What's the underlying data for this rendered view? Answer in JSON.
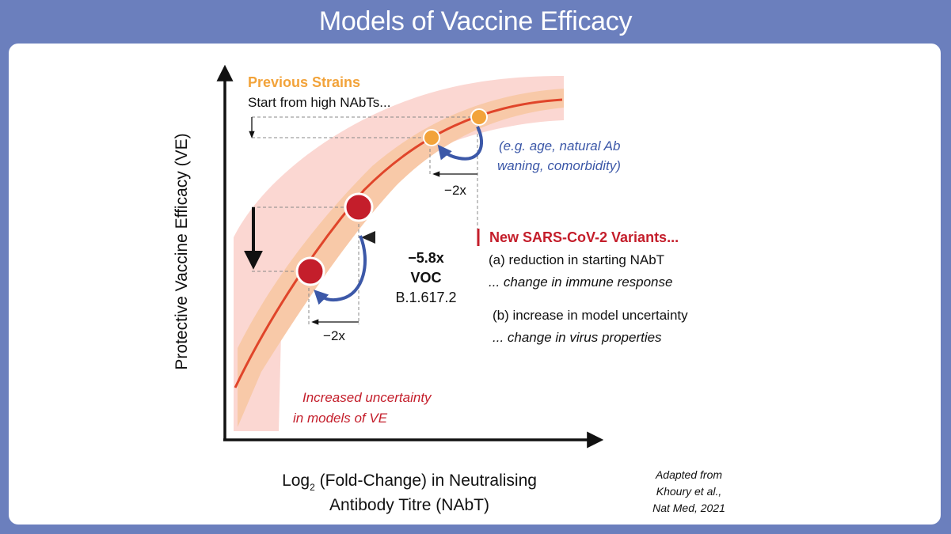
{
  "title": "Models of Vaccine Efficacy",
  "axes": {
    "y_label": "Protective Vaccine Efficacy (VE)",
    "x_label_main": "Log",
    "x_label_sub": "2",
    "x_label_rest": " (Fold-Change) in Neutralising",
    "x_label_line2": "Antibody Titre (NAbT)"
  },
  "previous": {
    "heading": "Previous Strains",
    "subheading": "Start from high NAbTs...",
    "cause_line1": "(e.g. age, natural Ab",
    "cause_line2": "waning, comorbidity)",
    "fold": "−2x"
  },
  "variants": {
    "heading": "New SARS-CoV-2 Variants...",
    "point_a": "(a) reduction in starting NAbT",
    "point_a_sub": "... change in immune response",
    "point_b": "(b) increase in model uncertainty",
    "point_b_sub": "... change in virus properties",
    "shift": "−5.8x",
    "voc": "VOC",
    "lineage": "B.1.617.2",
    "fold": "−2x"
  },
  "uncertainty_line1": "Increased uncertainty",
  "uncertainty_line2": "in models of VE",
  "citation": {
    "line1": "Adapted from",
    "line2": "Khoury et al.,",
    "line3": "Nat Med, 2021"
  },
  "colors": {
    "frame": "#6b7fbd",
    "curve": "#e0452a",
    "band_outer": "#fbd7d2",
    "band_inner": "#f9c7a4",
    "orange": "#f2a33a",
    "red_point": "#c41e2b",
    "blue_arrow": "#3c58a8",
    "variant_red": "#c41e2b"
  }
}
